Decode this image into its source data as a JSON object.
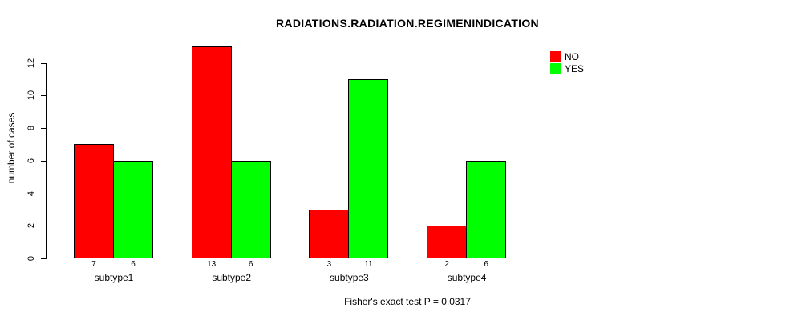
{
  "chart_data": {
    "type": "bar",
    "title": "RADIATIONS.RADIATION.REGIMENINDICATION",
    "ylabel": "number of cases",
    "categories": [
      "subtype1",
      "subtype2",
      "subtype3",
      "subtype4"
    ],
    "series": [
      {
        "name": "NO",
        "color": "#ff0000",
        "values": [
          7,
          13,
          3,
          2
        ]
      },
      {
        "name": "YES",
        "color": "#00ff00",
        "values": [
          6,
          6,
          11,
          6
        ]
      }
    ],
    "bar_value_labels": [
      [
        "7",
        "6"
      ],
      [
        "13",
        "6"
      ],
      [
        "3",
        "11"
      ],
      [
        "2",
        "6"
      ]
    ],
    "yticks": [
      0,
      2,
      4,
      6,
      8,
      10,
      12
    ],
    "ylim": [
      0,
      13
    ],
    "grid": false,
    "legend_position": "top-right",
    "footer": "Fisher's exact test P = 0.0317"
  }
}
